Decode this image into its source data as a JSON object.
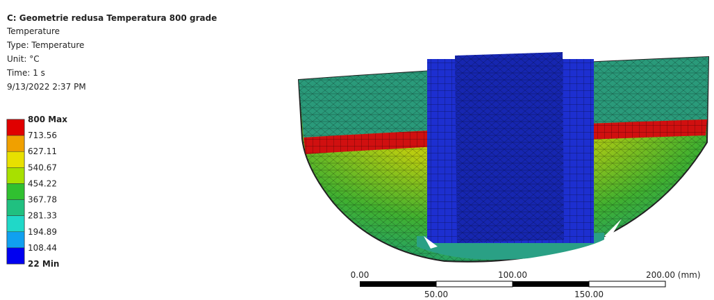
{
  "header": {
    "title": "C: Geometrie redusa Temperatura 800 grade",
    "lines": [
      "Temperature",
      "Type: Temperature",
      "Unit: °C",
      "Time: 1 s",
      "9/13/2022 2:37 PM"
    ]
  },
  "legend": {
    "labels": [
      "800 Max",
      "713.56",
      "627.11",
      "540.67",
      "454.22",
      "367.78",
      "281.33",
      "194.89",
      "108.44",
      "22 Min"
    ]
  },
  "scale_bar": {
    "top_labels": [
      "0.00",
      "100.00",
      "200.00 (mm)"
    ],
    "bottom_labels": [
      "50.00",
      "150.00"
    ]
  }
}
